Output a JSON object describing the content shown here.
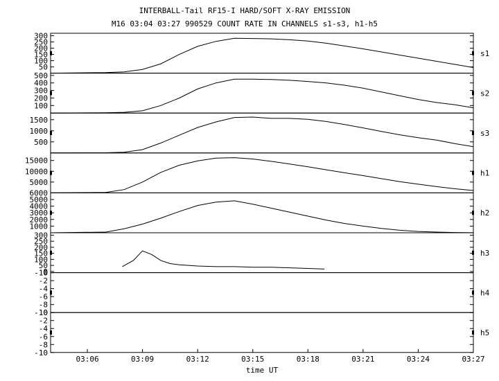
{
  "title": "INTERBALL-Tail RF15-I HARD/SOFT X-RAY EMISSION",
  "subtitle": "M16  03:04 03:27 990529  COUNT RATE IN CHANNELS s1-s3, h1-h5",
  "chart_data": {
    "type": "line",
    "xlabel": "time UT",
    "x_ticks": [
      "03:06",
      "03:09",
      "03:12",
      "03:15",
      "03:18",
      "03:21",
      "03:24",
      "03:27"
    ],
    "xlim": [
      "03:04",
      "03:27"
    ],
    "panels": [
      {
        "name": "s1",
        "y_ticks": [
          "300",
          "250",
          "200",
          "150",
          "100",
          "50"
        ],
        "ylim": [
          0,
          320
        ],
        "series": [
          {
            "x": [
              "03:04",
              "03:07",
              "03:08",
              "03:09",
              "03:10",
              "03:11",
              "03:12",
              "03:13",
              "03:14",
              "03:15",
              "03:16",
              "03:17",
              "03:18",
              "03:19",
              "03:20",
              "03:21",
              "03:22",
              "03:23",
              "03:24",
              "03:25",
              "03:26",
              "03:27"
            ],
            "values": [
              0,
              5,
              10,
              30,
              75,
              150,
              215,
              255,
              280,
              278,
              275,
              268,
              258,
              240,
              218,
              195,
              170,
              145,
              120,
              95,
              70,
              45
            ]
          }
        ]
      },
      {
        "name": "s2",
        "y_ticks": [
          "500",
          "400",
          "300",
          "200",
          "100"
        ],
        "ylim": [
          0,
          530
        ],
        "series": [
          {
            "x": [
              "03:04",
              "03:07",
              "03:08",
              "03:09",
              "03:10",
              "03:11",
              "03:12",
              "03:13",
              "03:14",
              "03:15",
              "03:16",
              "03:17",
              "03:18",
              "03:19",
              "03:20",
              "03:21",
              "03:22",
              "03:23",
              "03:24",
              "03:25",
              "03:26",
              "03:27"
            ],
            "values": [
              0,
              5,
              10,
              30,
              100,
              200,
              320,
              400,
              450,
              450,
              445,
              435,
              420,
              400,
              370,
              330,
              280,
              230,
              180,
              140,
              110,
              70
            ]
          }
        ]
      },
      {
        "name": "s3",
        "y_ticks": [
          "1500",
          "1000",
          "500"
        ],
        "ylim": [
          0,
          1800
        ],
        "series": [
          {
            "x": [
              "03:04",
              "03:07",
              "03:08",
              "03:09",
              "03:10",
              "03:11",
              "03:12",
              "03:13",
              "03:14",
              "03:15",
              "03:16",
              "03:17",
              "03:18",
              "03:19",
              "03:20",
              "03:21",
              "03:22",
              "03:23",
              "03:24",
              "03:25",
              "03:26",
              "03:27"
            ],
            "values": [
              0,
              10,
              30,
              150,
              450,
              800,
              1150,
              1400,
              1600,
              1620,
              1560,
              1560,
              1520,
              1420,
              1280,
              1130,
              970,
              820,
              690,
              580,
              420,
              280
            ]
          }
        ]
      },
      {
        "name": "h1",
        "y_ticks": [
          "15000",
          "10000",
          "5000"
        ],
        "ylim": [
          0,
          18500
        ],
        "series": [
          {
            "x": [
              "03:04",
              "03:07",
              "03:08",
              "03:09",
              "03:10",
              "03:11",
              "03:12",
              "03:13",
              "03:14",
              "03:15",
              "03:16",
              "03:17",
              "03:18",
              "03:19",
              "03:20",
              "03:21",
              "03:22",
              "03:23",
              "03:24",
              "03:25",
              "03:26",
              "03:27"
            ],
            "values": [
              0,
              200,
              1500,
              5000,
              9500,
              12800,
              14800,
              16100,
              16300,
              15700,
              14600,
              13400,
              12100,
              10700,
              9300,
              8000,
              6600,
              5200,
              4000,
              2900,
              1900,
              1100
            ]
          }
        ]
      },
      {
        "name": "h2",
        "y_ticks": [
          "6000",
          "5000",
          "4000",
          "3000",
          "2000",
          "1000"
        ],
        "ylim": [
          0,
          6000
        ],
        "series": [
          {
            "x": [
              "03:04",
              "03:07",
              "03:08",
              "03:09",
              "03:10",
              "03:11",
              "03:12",
              "03:13",
              "03:14",
              "03:15",
              "03:16",
              "03:17",
              "03:18",
              "03:19",
              "03:20",
              "03:21",
              "03:22",
              "03:23",
              "03:24",
              "03:25",
              "03:26",
              "03:27"
            ],
            "values": [
              0,
              100,
              600,
              1300,
              2200,
              3200,
              4100,
              4600,
              4800,
              4300,
              3700,
              3100,
              2500,
              1900,
              1400,
              1000,
              650,
              380,
              200,
              100,
              40,
              10
            ]
          }
        ]
      },
      {
        "name": "h3",
        "y_ticks": [
          "300",
          "250",
          "200",
          "150",
          "100",
          "50",
          "0",
          "-10"
        ],
        "ylim": [
          -10,
          320
        ],
        "series": [
          {
            "x": [
              "03:07.9",
              "03:08.5",
              "03:09",
              "03:09.5",
              "03:10",
              "03:10.5",
              "03:11",
              "03:12",
              "03:13",
              "03:14",
              "03:15",
              "03:16",
              "03:17",
              "03:18",
              "03:18.9"
            ],
            "values": [
              40,
              90,
              170,
              140,
              90,
              65,
              55,
              45,
              40,
              40,
              35,
              35,
              30,
              25,
              20
            ]
          }
        ]
      },
      {
        "name": "h4",
        "y_ticks": [
          "-10",
          "-8",
          "-6",
          "-4",
          "-2",
          "0"
        ],
        "ylim": [
          -10,
          0
        ],
        "series": []
      },
      {
        "name": "h5",
        "y_ticks": [
          "-10",
          "-8",
          "-6",
          "-4",
          "-2",
          "0"
        ],
        "ylim": [
          -10,
          0
        ],
        "series": []
      }
    ]
  }
}
